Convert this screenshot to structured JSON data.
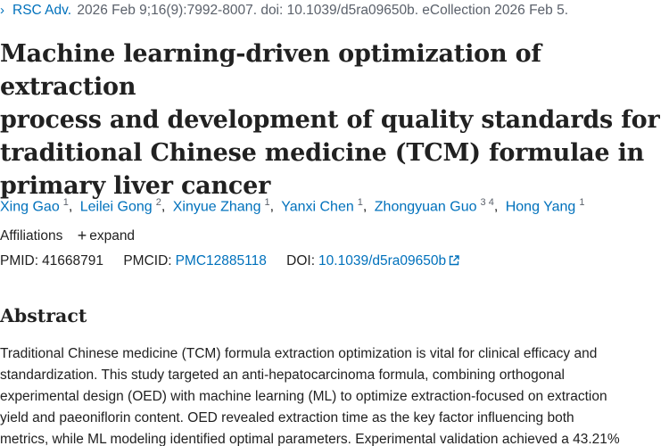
{
  "citation": {
    "arrow_icon": "chevron-right-icon",
    "journal": "RSC Adv.",
    "details": "2026 Feb 9;16(9):7992-8007. doi: 10.1039/d5ra09650b. eCollection 2026 Feb 5."
  },
  "title": {
    "lines": [
      "Machine learning-driven optimization of extraction",
      "process and development of quality standards for",
      "traditional Chinese medicine (TCM) formulae in",
      "primary liver cancer"
    ]
  },
  "authors": [
    {
      "name": "Xing Gao",
      "affiliations": "1"
    },
    {
      "name": "Leilei Gong",
      "affiliations": "2"
    },
    {
      "name": "Xinyue Zhang",
      "affiliations": "1"
    },
    {
      "name": "Yanxi Chen",
      "affiliations": "1"
    },
    {
      "name": "Zhongyuan Guo",
      "affiliations": "3 4"
    },
    {
      "name": "Hong Yang",
      "affiliations": "1"
    }
  ],
  "author_separator": ",",
  "affiliations": {
    "label": "Affiliations",
    "expand_icon": "plus-icon",
    "expand_label": "expand"
  },
  "identifiers": {
    "pmid_label": "PMID:",
    "pmid": "41668791",
    "pmcid_label": "PMCID:",
    "pmcid": "PMC12885118",
    "doi_label": "DOI:",
    "doi": "10.1039/d5ra09650b",
    "doi_icon": "external-link-icon"
  },
  "abstract": {
    "heading": "Abstract",
    "lines": [
      "Traditional Chinese medicine (TCM) formula extraction optimization is vital for clinical efficacy and",
      "standardization. This study targeted an anti-hepatocarcinoma formula, combining orthogonal",
      "experimental design (OED) with machine learning (ML) to optimize extraction-focused on extraction",
      "yield and paeoniflorin content. OED revealed extraction time as the key factor influencing both",
      "metrics, while ML modeling identified optimal parameters. Experimental validation achieved a 43.21%"
    ]
  },
  "colors": {
    "link": "#0071bc",
    "text": "#212121",
    "muted": "#5b616b"
  }
}
